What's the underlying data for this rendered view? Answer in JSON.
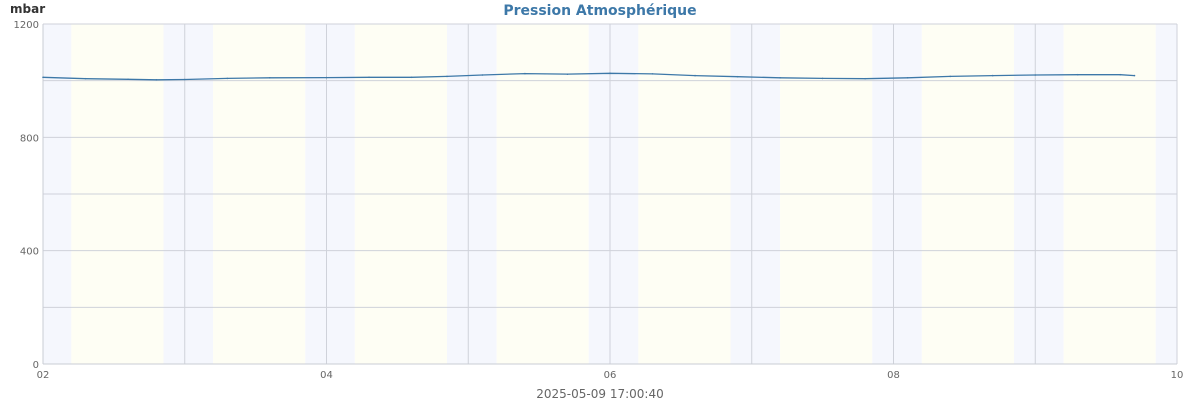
{
  "chart_data": {
    "type": "line",
    "title": "Pression Atmosphérique",
    "ylabel": "mbar",
    "footer": "2025-05-09 17:00:40",
    "xlim": [
      2,
      10
    ],
    "ylim": [
      0,
      1200
    ],
    "x_ticks": [
      {
        "value": 2,
        "label": "02"
      },
      {
        "value": 4,
        "label": "04"
      },
      {
        "value": 6,
        "label": "06"
      },
      {
        "value": 8,
        "label": "08"
      },
      {
        "value": 10,
        "label": "10"
      }
    ],
    "y_ticks": [
      {
        "value": 0,
        "label": "0"
      },
      {
        "value": 400,
        "label": "400"
      },
      {
        "value": 800,
        "label": "800"
      },
      {
        "value": 1200,
        "label": "1200"
      }
    ],
    "minor_x_gridlines": [
      3,
      5,
      7,
      9
    ],
    "minor_y_gridlines": [
      200,
      600,
      1000
    ],
    "grid": true,
    "bands": [
      {
        "kind": "night",
        "from": 2.0,
        "to": 2.2
      },
      {
        "kind": "day",
        "from": 2.2,
        "to": 2.85
      },
      {
        "kind": "night",
        "from": 2.85,
        "to": 3.2
      },
      {
        "kind": "day",
        "from": 3.2,
        "to": 3.85
      },
      {
        "kind": "night",
        "from": 3.85,
        "to": 4.2
      },
      {
        "kind": "day",
        "from": 4.2,
        "to": 4.85
      },
      {
        "kind": "night",
        "from": 4.85,
        "to": 5.2
      },
      {
        "kind": "day",
        "from": 5.2,
        "to": 5.85
      },
      {
        "kind": "night",
        "from": 5.85,
        "to": 6.2
      },
      {
        "kind": "day",
        "from": 6.2,
        "to": 6.85
      },
      {
        "kind": "night",
        "from": 6.85,
        "to": 7.2
      },
      {
        "kind": "day",
        "from": 7.2,
        "to": 7.85
      },
      {
        "kind": "night",
        "from": 7.85,
        "to": 8.2
      },
      {
        "kind": "day",
        "from": 8.2,
        "to": 8.85
      },
      {
        "kind": "night",
        "from": 8.85,
        "to": 9.2
      },
      {
        "kind": "day",
        "from": 9.2,
        "to": 9.85
      },
      {
        "kind": "night",
        "from": 9.85,
        "to": 10.0
      }
    ],
    "series": [
      {
        "color": "#3d78a8",
        "x": [
          2.0,
          2.3,
          2.6,
          2.8,
          3.0,
          3.3,
          3.6,
          4.0,
          4.3,
          4.6,
          4.85,
          5.1,
          5.4,
          5.7,
          6.0,
          6.3,
          6.6,
          6.9,
          7.2,
          7.5,
          7.8,
          8.1,
          8.4,
          8.7,
          9.0,
          9.3,
          9.6,
          9.7
        ],
        "y": [
          1012,
          1007,
          1005,
          1003,
          1004,
          1008,
          1010,
          1011,
          1012,
          1012,
          1015,
          1020,
          1025,
          1023,
          1026,
          1024,
          1018,
          1014,
          1010,
          1008,
          1007,
          1010,
          1015,
          1018,
          1020,
          1021,
          1021,
          1018
        ]
      }
    ],
    "colors": {
      "day_band": "#fefef4",
      "night_band": "#f5f7fd",
      "grid": "#cfd2da",
      "axis": "#c9ccd4"
    }
  }
}
